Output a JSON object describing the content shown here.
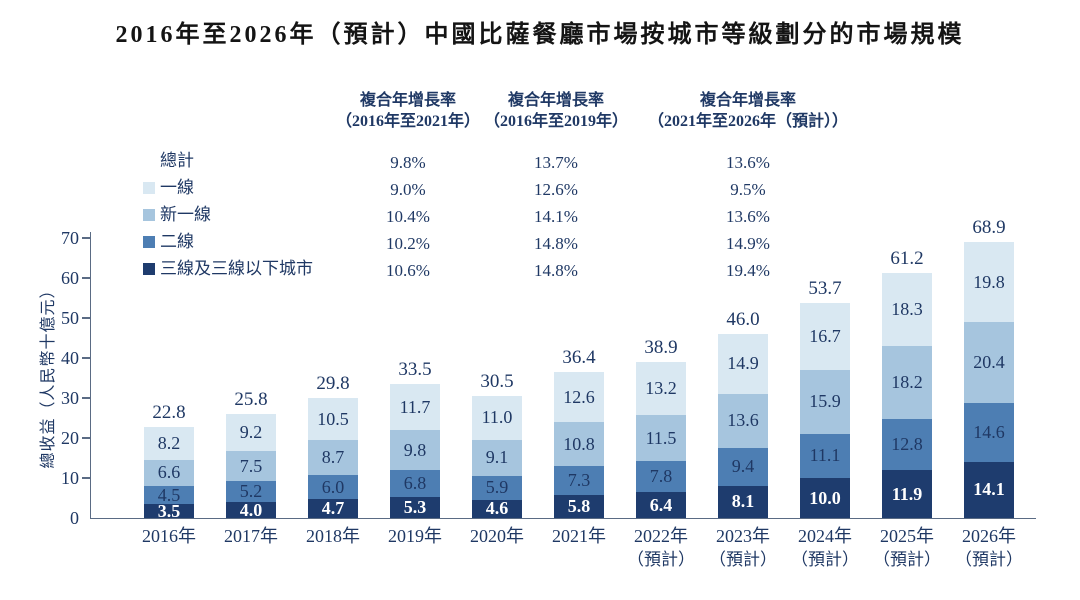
{
  "title": "2016年至2026年（預計）中國比薩餐廳市場按城市等級劃分的市場規模",
  "colors": {
    "text_navy": "#1f3864",
    "axis": "#5a6b84",
    "tier1": "#d9e8f2",
    "new_tier1": "#a6c5de",
    "tier2": "#4d7eb3",
    "tier3_below": "#1e3c6e",
    "label_on_dark": "#ffffff"
  },
  "cagr_table": {
    "headers": [
      {
        "line1": "複合年增長率",
        "line2": "（2016年至2021年）"
      },
      {
        "line1": "複合年增長率",
        "line2": "（2016年至2019年）"
      },
      {
        "line1": "複合年增長率",
        "line2": "（2021年至2026年（預計））"
      }
    ],
    "rows": [
      {
        "label": "總計",
        "swatch": null,
        "values": [
          "9.8%",
          "13.7%",
          "13.6%"
        ]
      },
      {
        "label": "一線",
        "swatch": "#d9e8f2",
        "values": [
          "9.0%",
          "12.6%",
          "9.5%"
        ]
      },
      {
        "label": "新一線",
        "swatch": "#a6c5de",
        "values": [
          "10.4%",
          "14.1%",
          "13.6%"
        ]
      },
      {
        "label": "二線",
        "swatch": "#4d7eb3",
        "values": [
          "10.2%",
          "14.8%",
          "14.9%"
        ]
      },
      {
        "label": "三線及三線以下城市",
        "swatch": "#1e3c6e",
        "values": [
          "10.6%",
          "14.8%",
          "19.4%"
        ]
      }
    ]
  },
  "chart_data": {
    "type": "bar",
    "stacked": true,
    "title": "2016年至2026年（預計）中國比薩餐廳市場按城市等級劃分的市場規模",
    "ylabel": "總收益（人民幣十億元）",
    "ylim": [
      0,
      70
    ],
    "yticks": [
      0,
      10,
      20,
      30,
      40,
      50,
      60,
      70
    ],
    "grid": false,
    "legend_position": "upper-left",
    "categories": [
      {
        "year": "2016年",
        "note": ""
      },
      {
        "year": "2017年",
        "note": ""
      },
      {
        "year": "2018年",
        "note": ""
      },
      {
        "year": "2019年",
        "note": ""
      },
      {
        "year": "2020年",
        "note": ""
      },
      {
        "year": "2021年",
        "note": ""
      },
      {
        "year": "2022年",
        "note": "（預計）"
      },
      {
        "year": "2023年",
        "note": "（預計）"
      },
      {
        "year": "2024年",
        "note": "（預計）"
      },
      {
        "year": "2025年",
        "note": "（預計）"
      },
      {
        "year": "2026年",
        "note": "（預計）"
      }
    ],
    "series": [
      {
        "name": "三線及三線以下城市",
        "color": "#1e3c6e",
        "label_color": "#ffffff",
        "label_bold": true,
        "values": [
          3.5,
          4.0,
          4.7,
          5.3,
          4.6,
          5.8,
          6.4,
          8.1,
          10.0,
          11.9,
          14.1
        ]
      },
      {
        "name": "二線",
        "color": "#4d7eb3",
        "label_color": "#1f3864",
        "label_bold": false,
        "values": [
          4.5,
          5.2,
          6.0,
          6.8,
          5.9,
          7.3,
          7.8,
          9.4,
          11.1,
          12.8,
          14.6
        ]
      },
      {
        "name": "新一線",
        "color": "#a6c5de",
        "label_color": "#1f3864",
        "label_bold": false,
        "values": [
          6.6,
          7.5,
          8.7,
          9.8,
          9.1,
          10.8,
          11.5,
          13.6,
          15.9,
          18.2,
          20.4
        ]
      },
      {
        "name": "一線",
        "color": "#d9e8f2",
        "label_color": "#1f3864",
        "label_bold": false,
        "values": [
          8.2,
          9.2,
          10.5,
          11.7,
          11.0,
          12.6,
          13.2,
          14.9,
          16.7,
          18.3,
          19.8
        ]
      }
    ],
    "totals": [
      22.8,
      25.8,
      29.8,
      33.5,
      30.5,
      36.4,
      38.9,
      46.0,
      53.7,
      61.2,
      68.9
    ]
  }
}
